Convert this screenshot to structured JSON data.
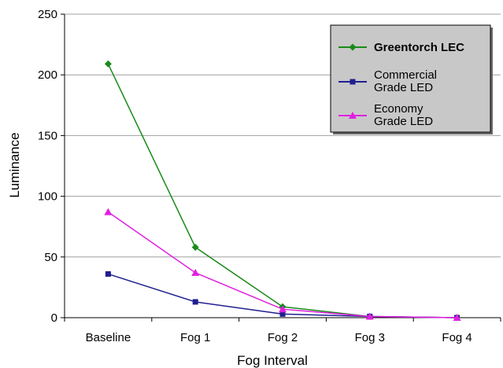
{
  "chart_data": {
    "type": "line",
    "xlabel": "Fog Interval",
    "ylabel": "Luminance",
    "categories": [
      "Baseline",
      "Fog 1",
      "Fog 2",
      "Fog 3",
      "Fog 4"
    ],
    "ylim": [
      0,
      250
    ],
    "yticks": [
      0,
      50,
      100,
      150,
      200,
      250
    ],
    "grid": true,
    "legend_position": "top-right",
    "series": [
      {
        "name": "Greentorch LEC",
        "legend_lines": [
          "Greentorch LEC"
        ],
        "bold": true,
        "color": "#1a8a1a",
        "marker": "diamond",
        "values": [
          209,
          58,
          9,
          1,
          0
        ]
      },
      {
        "name": "Commercial Grade LED",
        "legend_lines": [
          "Commercial",
          "Grade LED"
        ],
        "bold": false,
        "color": "#1f1f8f",
        "marker": "square",
        "values": [
          36,
          13,
          3,
          1,
          0
        ]
      },
      {
        "name": "Economy Grade LED",
        "legend_lines": [
          "Economy",
          "Grade LED"
        ],
        "bold": false,
        "color": "#e020e0",
        "marker": "triangle",
        "values": [
          87,
          37,
          7,
          1,
          0
        ]
      }
    ]
  }
}
